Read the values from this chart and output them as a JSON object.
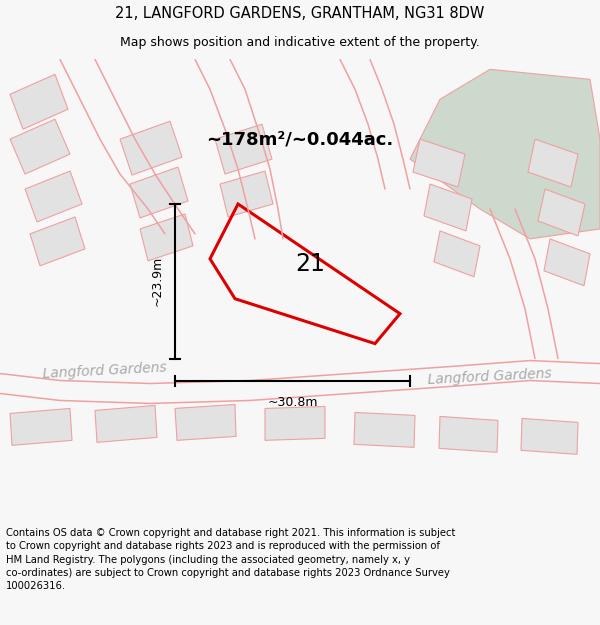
{
  "title": "21, LANGFORD GARDENS, GRANTHAM, NG31 8DW",
  "subtitle": "Map shows position and indicative extent of the property.",
  "area_label": "~178m²/~0.044ac.",
  "plot_number": "21",
  "dim_horizontal": "~30.8m",
  "dim_vertical": "~23.9m",
  "street_label_left": "Langford Gardens",
  "street_label_right": "Langford Gardens",
  "copyright_text": "Contains OS data © Crown copyright and database right 2021. This information is subject\nto Crown copyright and database rights 2023 and is reproduced with the permission of\nHM Land Registry. The polygons (including the associated geometry, namely x, y\nco-ordinates) are subject to Crown copyright and database rights 2023 Ordnance Survey\n100026316.",
  "bg_color": "#f7f7f7",
  "map_bg": "#ffffff",
  "green_patch_color": "#ccd9cc",
  "property_line_color": "#dd0000",
  "other_line_color": "#f0a0a0",
  "building_fill_color": "#e2e2e2",
  "dim_line_color": "#000000",
  "title_fontsize": 10.5,
  "subtitle_fontsize": 9,
  "area_label_fontsize": 13,
  "plot_num_fontsize": 17,
  "street_fontsize": 10,
  "copyright_fontsize": 7.2
}
